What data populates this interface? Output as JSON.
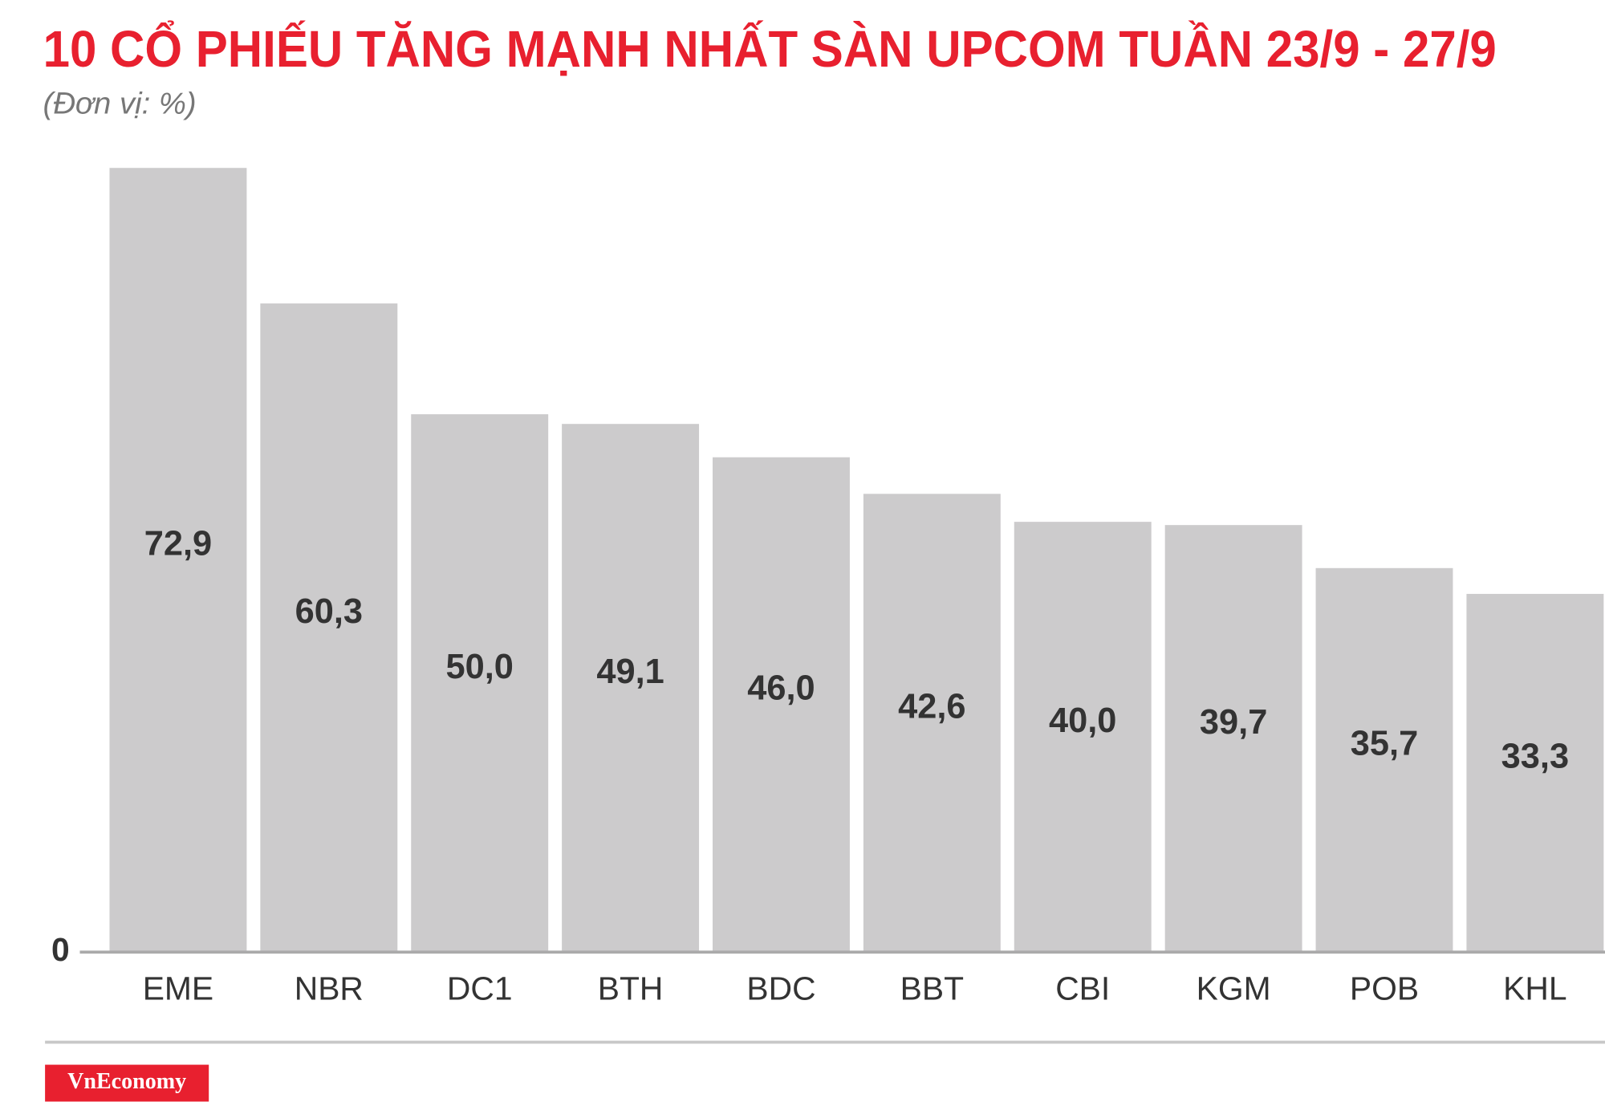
{
  "chart_data": {
    "type": "bar",
    "title": "10 CỔ PHIẾU TĂNG MẠNH NHẤT SÀN UPCOM TUẦN 23/9 - 27/9",
    "subtitle": "(Đơn vị: %)",
    "categories": [
      "EME",
      "NBR",
      "DC1",
      "BTH",
      "BDC",
      "BBT",
      "CBI",
      "KGM",
      "POB",
      "KHL"
    ],
    "values": [
      72.9,
      60.3,
      50.0,
      49.1,
      46.0,
      42.6,
      40.0,
      39.7,
      35.7,
      33.3
    ],
    "value_labels": [
      "72,9",
      "60,3",
      "50,0",
      "49,1",
      "46,0",
      "42,6",
      "40,0",
      "39,7",
      "35,7",
      "33,3"
    ],
    "color": "#cccbcc",
    "ylim": [
      0,
      72.9
    ],
    "yticks": [
      0
    ]
  },
  "footer": {
    "brand": "VnEconomy"
  }
}
